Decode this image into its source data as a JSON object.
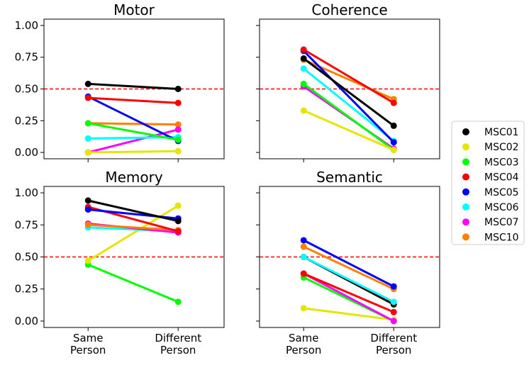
{
  "chart_data": {
    "type": "line",
    "refline": 0.5,
    "x_categories": [
      "Same\nPerson",
      "Different\nPerson"
    ],
    "yticks": [
      "0.00",
      "0.25",
      "0.50",
      "0.75",
      "1.00"
    ],
    "ylim": [
      -0.05,
      1.05
    ],
    "legend": [
      {
        "name": "MSC01",
        "color": "#000000"
      },
      {
        "name": "MSC02",
        "color": "#e5e500"
      },
      {
        "name": "MSC03",
        "color": "#00ff00"
      },
      {
        "name": "MSC04",
        "color": "#ff0000"
      },
      {
        "name": "MSC05",
        "color": "#0000ff"
      },
      {
        "name": "MSC06",
        "color": "#00ffff"
      },
      {
        "name": "MSC07",
        "color": "#ff00ff"
      },
      {
        "name": "MSC10",
        "color": "#ff8000"
      }
    ],
    "panels": [
      {
        "title": "Motor",
        "series": [
          {
            "name": "MSC10",
            "values": [
              0.23,
              0.22
            ]
          },
          {
            "name": "MSC07",
            "values": [
              0.0,
              0.18
            ]
          },
          {
            "name": "MSC06",
            "values": [
              0.11,
              0.12
            ]
          },
          {
            "name": "MSC05",
            "values": [
              0.44,
              0.09
            ]
          },
          {
            "name": "MSC04",
            "values": [
              0.43,
              0.39
            ]
          },
          {
            "name": "MSC03",
            "values": [
              0.23,
              0.1
            ]
          },
          {
            "name": "MSC02",
            "values": [
              0.0,
              0.01
            ]
          },
          {
            "name": "MSC01",
            "values": [
              0.54,
              0.5
            ]
          }
        ]
      },
      {
        "title": "Coherence",
        "series": [
          {
            "name": "MSC10",
            "values": [
              0.73,
              0.42
            ]
          },
          {
            "name": "MSC07",
            "values": [
              0.52,
              0.03
            ]
          },
          {
            "name": "MSC06",
            "values": [
              0.66,
              0.09
            ]
          },
          {
            "name": "MSC05",
            "values": [
              0.8,
              0.08
            ]
          },
          {
            "name": "MSC04",
            "values": [
              0.81,
              0.39
            ]
          },
          {
            "name": "MSC03",
            "values": [
              0.54,
              0.02
            ]
          },
          {
            "name": "MSC02",
            "values": [
              0.33,
              0.02
            ]
          },
          {
            "name": "MSC01",
            "values": [
              0.74,
              0.21
            ]
          }
        ]
      },
      {
        "title": "Memory",
        "series": [
          {
            "name": "MSC03",
            "values": [
              0.44,
              0.15
            ]
          },
          {
            "name": "MSC02",
            "values": [
              0.47,
              0.9
            ]
          },
          {
            "name": "MSC06",
            "values": [
              0.73,
              0.7
            ]
          },
          {
            "name": "MSC07",
            "values": [
              0.76,
              0.69
            ]
          },
          {
            "name": "MSC10",
            "values": [
              0.75,
              0.71
            ]
          },
          {
            "name": "MSC04",
            "values": [
              0.89,
              0.7
            ]
          },
          {
            "name": "MSC05",
            "values": [
              0.87,
              0.8
            ]
          },
          {
            "name": "MSC01",
            "values": [
              0.94,
              0.78
            ]
          }
        ]
      },
      {
        "title": "Semantic",
        "series": [
          {
            "name": "MSC02",
            "values": [
              0.1,
              0.01
            ]
          },
          {
            "name": "MSC03",
            "values": [
              0.34,
              0.0
            ]
          },
          {
            "name": "MSC07",
            "values": [
              0.37,
              0.0
            ]
          },
          {
            "name": "MSC04",
            "values": [
              0.37,
              0.07
            ]
          },
          {
            "name": "MSC01",
            "values": [
              0.5,
              0.13
            ]
          },
          {
            "name": "MSC06",
            "values": [
              0.5,
              0.15
            ]
          },
          {
            "name": "MSC10",
            "values": [
              0.58,
              0.25
            ]
          },
          {
            "name": "MSC05",
            "values": [
              0.63,
              0.27
            ]
          }
        ]
      }
    ]
  }
}
